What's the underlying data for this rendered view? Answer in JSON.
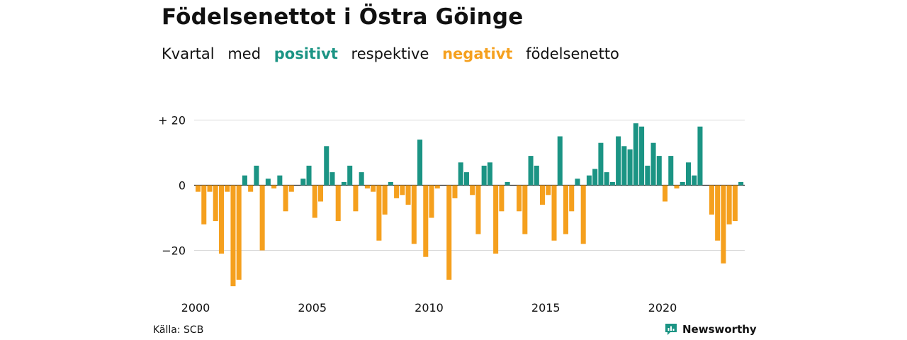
{
  "header": {
    "title": "Födelsenettot i Östra Göinge",
    "subtitle_parts": [
      "Kvartal",
      "med",
      "positivt",
      "respektive",
      "negativt",
      "födelsenetto"
    ]
  },
  "footer": {
    "source": "Källa: SCB",
    "brand": "Newsworthy"
  },
  "colors": {
    "positive": "#1b9484",
    "negative": "#f5a01e",
    "grid": "#d9d9d9",
    "text": "#111111"
  },
  "chart_data": {
    "type": "bar",
    "title": "Födelsenettot i Östra Göinge",
    "subtitle": "Kvartal med positivt respektive negativt födelsenetto",
    "x_start": "2000-Q1",
    "x_tick_labels": [
      "2000",
      "2005",
      "2010",
      "2015",
      "2020"
    ],
    "y_tick_labels": [
      "+ 20",
      "0",
      "−20"
    ],
    "y_ticks": [
      20,
      0,
      -20
    ],
    "ylim": [
      -31,
      20
    ],
    "grid": "horizontal",
    "values": [
      -2,
      -12,
      -2,
      -11,
      -21,
      -2,
      -31,
      -29,
      3,
      -2,
      6,
      -20,
      2,
      -1,
      3,
      -8,
      -2,
      0,
      2,
      6,
      -10,
      -5,
      12,
      4,
      -11,
      1,
      6,
      -8,
      4,
      -1,
      -2,
      -17,
      -9,
      1,
      -4,
      -3,
      -6,
      -18,
      14,
      -22,
      -10,
      -1,
      0,
      -29,
      -4,
      7,
      4,
      -3,
      -15,
      6,
      7,
      -21,
      -8,
      1,
      0,
      -8,
      -15,
      9,
      6,
      -6,
      -3,
      -17,
      15,
      -15,
      -8,
      2,
      -18,
      3,
      5,
      13,
      4,
      1,
      15,
      12,
      11,
      19,
      18,
      6,
      13,
      9,
      -5,
      9,
      -1,
      1,
      7,
      3,
      18,
      0,
      -9,
      -17,
      -24,
      -12,
      -11,
      1
    ]
  }
}
